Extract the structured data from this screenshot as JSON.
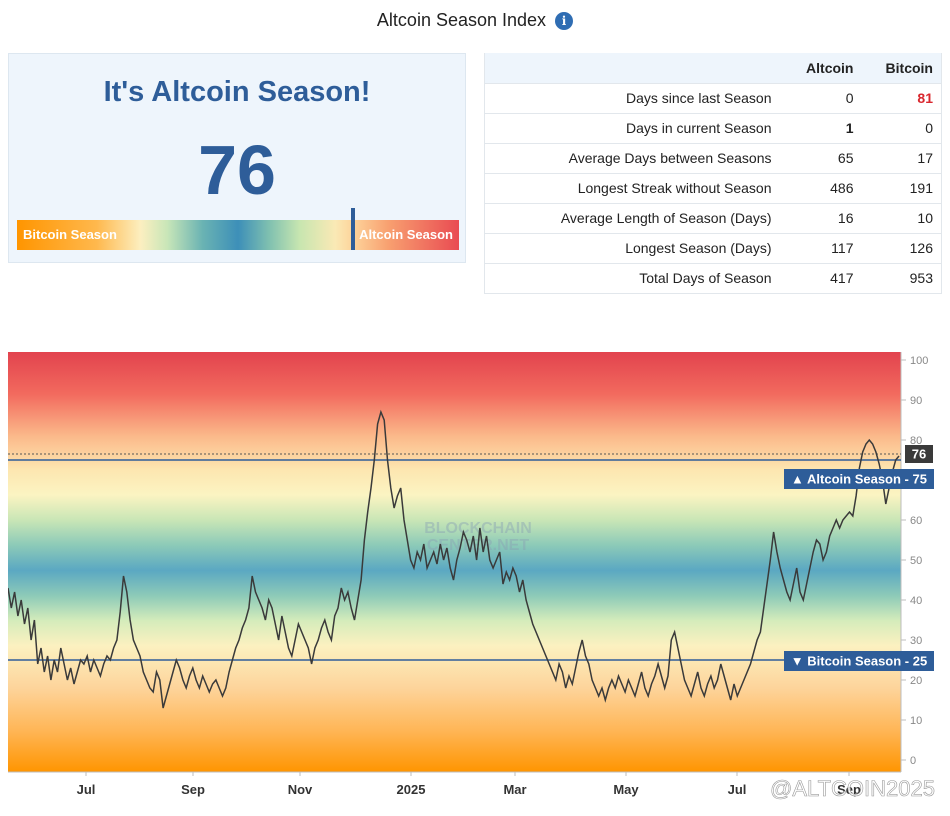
{
  "page_title": "Altcoin Season Index",
  "info_icon": "i",
  "panel": {
    "headline": "It's Altcoin Season!",
    "value": "76",
    "scale_left_label": "Bitcoin Season",
    "scale_right_label": "Altcoin Season",
    "marker_level": 76
  },
  "stats_table": {
    "columns": [
      "Altcoin",
      "Bitcoin"
    ],
    "rows": [
      {
        "label": "Days since last Season",
        "altcoin": "0",
        "bitcoin": "81"
      },
      {
        "label": "Days in current Season",
        "altcoin": "1",
        "bitcoin": "0"
      },
      {
        "label": "Average Days between Seasons",
        "altcoin": "65",
        "bitcoin": "17"
      },
      {
        "label": "Longest Streak without Season",
        "altcoin": "486",
        "bitcoin": "191"
      },
      {
        "label": "Average Length of Season (Days)",
        "altcoin": "16",
        "bitcoin": "10"
      },
      {
        "label": "Longest Season (Days)",
        "altcoin": "117",
        "bitcoin": "126"
      },
      {
        "label": "Total Days of Season",
        "altcoin": "417",
        "bitcoin": "953"
      }
    ],
    "highlight_color": "#d9272e"
  },
  "chart_data": {
    "type": "line",
    "title": "",
    "xlabel": "",
    "ylabel": "",
    "ylim": [
      -3,
      102
    ],
    "yticks": [
      0,
      10,
      20,
      30,
      40,
      50,
      60,
      70,
      80,
      90,
      100
    ],
    "xticks": [
      "Jul",
      "Sep",
      "Nov",
      "2025",
      "Mar",
      "May",
      "Jul",
      "Sep"
    ],
    "watermark_text": [
      "BLOCKCHAIN",
      "CENTER.NET"
    ],
    "overlay_text": "@ALTCOIN2025",
    "current_value_label": "76",
    "altcoin_season_label": "▲ Altcoin Season - 75",
    "bitcoin_season_label": "▼ Bitcoin Season - 25",
    "altcoin_threshold": 75,
    "bitcoin_threshold": 25,
    "current_value": 76,
    "line_color": "#3a3a3a",
    "threshold_color": "#2e5d99",
    "series": [
      {
        "values": [
          43,
          38,
          42,
          36,
          40,
          34,
          38,
          30,
          35,
          24,
          28,
          22,
          26,
          20,
          25,
          22,
          28,
          24,
          20,
          23,
          19,
          22,
          25,
          24,
          26,
          22,
          25,
          23,
          21,
          24,
          26,
          25,
          28,
          30,
          37,
          46,
          42,
          35,
          30,
          28,
          26,
          22,
          20,
          18,
          17,
          22,
          20,
          13,
          16,
          19,
          22,
          25,
          23,
          20,
          18,
          21,
          23,
          20,
          18,
          21,
          19,
          17,
          19,
          20,
          18,
          16,
          18,
          22,
          25,
          28,
          30,
          33,
          35,
          38,
          46,
          42,
          40,
          38,
          35,
          40,
          38,
          34,
          30,
          36,
          32,
          28,
          26,
          30,
          34,
          32,
          30,
          28,
          24,
          28,
          30,
          33,
          35,
          32,
          30,
          36,
          38,
          43,
          40,
          42,
          38,
          35,
          40,
          45,
          55,
          62,
          68,
          75,
          84,
          87,
          85,
          75,
          68,
          63,
          66,
          68,
          60,
          55,
          50,
          48,
          52,
          50,
          54,
          48,
          50,
          52,
          49,
          54,
          50,
          53,
          48,
          45,
          50,
          53,
          57,
          55,
          52,
          56,
          50,
          58,
          52,
          56,
          50,
          48,
          50,
          52,
          44,
          47,
          45,
          48,
          46,
          42,
          45,
          40,
          37,
          34,
          32,
          30,
          28,
          26,
          24,
          22,
          20,
          24,
          22,
          18,
          21,
          19,
          23,
          27,
          30,
          26,
          24,
          20,
          18,
          16,
          18,
          15,
          18,
          20,
          18,
          21,
          19,
          17,
          20,
          18,
          16,
          19,
          22,
          18,
          16,
          19,
          21,
          24,
          21,
          18,
          21,
          30,
          32,
          28,
          24,
          20,
          18,
          16,
          19,
          22,
          18,
          16,
          19,
          21,
          18,
          20,
          24,
          21,
          18,
          15,
          19,
          16,
          18,
          20,
          22,
          24,
          27,
          30,
          32,
          38,
          44,
          50,
          57,
          52,
          48,
          45,
          42,
          40,
          44,
          48,
          42,
          40,
          44,
          48,
          52,
          55,
          54,
          50,
          52,
          56,
          58,
          60,
          58,
          60,
          61,
          62,
          61,
          66,
          73,
          77,
          79,
          80,
          79,
          77,
          74,
          70,
          64,
          68,
          72,
          75,
          76
        ]
      }
    ]
  }
}
